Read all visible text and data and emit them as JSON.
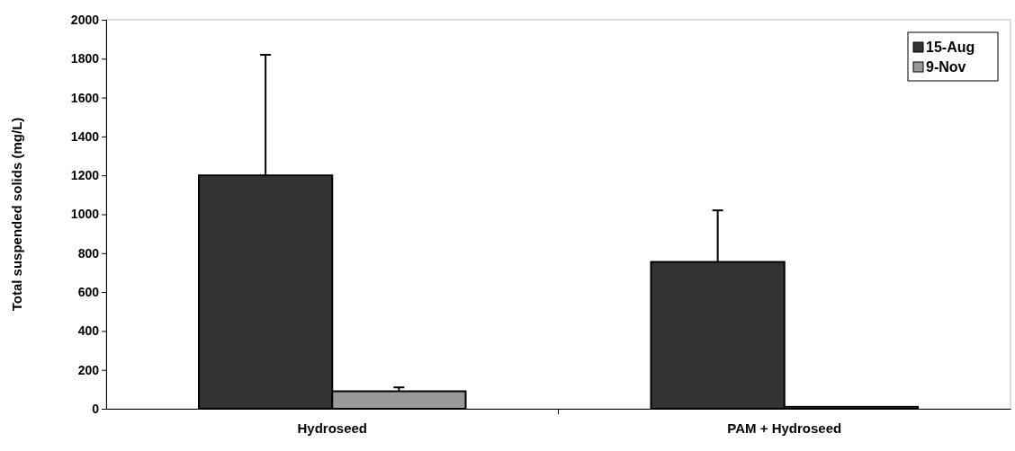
{
  "chart_data": {
    "type": "bar",
    "ylabel": "Total suspended solids (mg/L)",
    "categories": [
      "Hydroseed",
      "PAM + Hydroseed"
    ],
    "series": [
      {
        "name": "15-Aug",
        "color": "#333333",
        "values": [
          1200,
          755
        ],
        "errors": [
          [
            1200,
            1820
          ],
          [
            755,
            1020
          ]
        ]
      },
      {
        "name": "9-Nov",
        "color": "#999999",
        "values": [
          90,
          10
        ],
        "errors": [
          [
            90,
            110
          ],
          null
        ]
      }
    ],
    "ylim": [
      0,
      2000
    ],
    "yticks": [
      0,
      200,
      400,
      600,
      800,
      1000,
      1200,
      1400,
      1600,
      1800,
      2000
    ],
    "grid": false,
    "legend": "top right"
  }
}
